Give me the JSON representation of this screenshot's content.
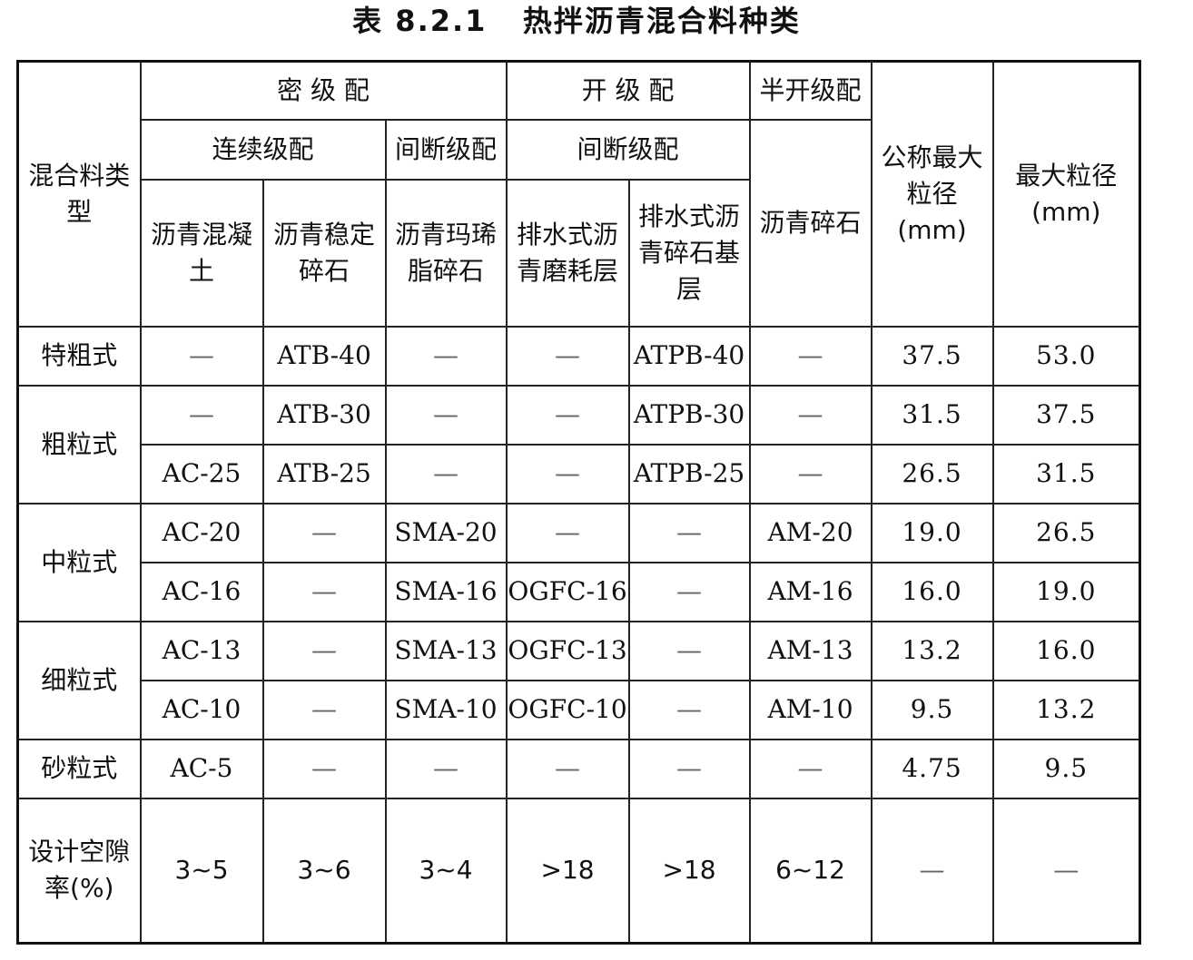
{
  "title": "表 8.2.1   热拌沥青混合料种类",
  "header": {
    "mix_type": "混合料类型",
    "dense_grading": "密 级 配",
    "open_grading": "开 级 配",
    "semi_open_grading": "半开级配",
    "continuous_grading": "连续级配",
    "gap_grading_dense": "间断级配",
    "gap_grading_open": "间断级配",
    "col_asphalt_concrete": "沥青混凝土",
    "col_asphalt_treated_base": "沥青稳定碎石",
    "col_sma": "沥青玛琋脂碎石",
    "col_drainage_wearing": "排水式沥青磨耗层",
    "col_drainage_base": "排水式沥青碎石基层",
    "col_asphalt_macadam": "沥青碎石",
    "col_nominal_max": "公称最大粒径(mm)",
    "col_max": "最大粒径(mm)"
  },
  "rows": [
    {
      "group": "特粗式",
      "cells": [
        "—",
        "ATB-40",
        "—",
        "—",
        "ATPB-40",
        "—",
        "37.5",
        "53.0"
      ]
    },
    {
      "group": "粗粒式",
      "cells": [
        "—",
        "ATB-30",
        "—",
        "—",
        "ATPB-30",
        "—",
        "31.5",
        "37.5"
      ]
    },
    {
      "group": "",
      "cells": [
        "AC-25",
        "ATB-25",
        "—",
        "—",
        "ATPB-25",
        "—",
        "26.5",
        "31.5"
      ]
    },
    {
      "group": "中粒式",
      "cells": [
        "AC-20",
        "—",
        "SMA-20",
        "—",
        "—",
        "AM-20",
        "19.0",
        "26.5"
      ]
    },
    {
      "group": "",
      "cells": [
        "AC-16",
        "—",
        "SMA-16",
        "OGFC-16",
        "—",
        "AM-16",
        "16.0",
        "19.0"
      ]
    },
    {
      "group": "细粒式",
      "cells": [
        "AC-13",
        "—",
        "SMA-13",
        "OGFC-13",
        "—",
        "AM-13",
        "13.2",
        "16.0"
      ]
    },
    {
      "group": "",
      "cells": [
        "AC-10",
        "—",
        "SMA-10",
        "OGFC-10",
        "—",
        "AM-10",
        "9.5",
        "13.2"
      ]
    },
    {
      "group": "砂粒式",
      "cells": [
        "AC-5",
        "—",
        "—",
        "—",
        "—",
        "—",
        "4.75",
        "9.5"
      ]
    }
  ],
  "voids_row": {
    "label": "设计空隙率(%)",
    "cells": [
      "3~5",
      "3~6",
      "3~4",
      ">18",
      ">18",
      "6~12",
      "—",
      "—"
    ]
  }
}
